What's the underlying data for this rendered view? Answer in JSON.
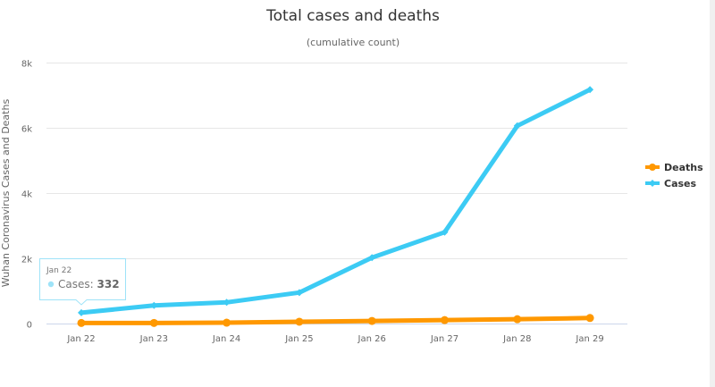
{
  "chart_data": {
    "type": "line",
    "title": "Total cases and deaths",
    "subtitle": "(cumulative count)",
    "xlabel": "",
    "ylabel": "Wuhan Coronavirus Cases and Deaths",
    "categories": [
      "Jan 22",
      "Jan 23",
      "Jan 24",
      "Jan 25",
      "Jan 26",
      "Jan 27",
      "Jan 28",
      "Jan 29"
    ],
    "ylim": [
      0,
      8000
    ],
    "yticks": [
      0,
      2000,
      4000,
      6000,
      8000
    ],
    "ytick_labels": [
      "0",
      "2k",
      "4k",
      "6k",
      "8k"
    ],
    "grid": true,
    "legend_position": "right",
    "series": [
      {
        "name": "Deaths",
        "color": "#ff9800",
        "values": [
          17,
          18,
          26,
          56,
          80,
          106,
          132,
          170
        ]
      },
      {
        "name": "Cases",
        "color": "#3ccbf4",
        "values": [
          332,
          555,
          650,
          950,
          2020,
          2800,
          6060,
          7170
        ]
      }
    ],
    "tooltip": {
      "date": "Jan 22",
      "label": "Cases:",
      "value": "332",
      "series_color": "#9ee3f8"
    }
  }
}
